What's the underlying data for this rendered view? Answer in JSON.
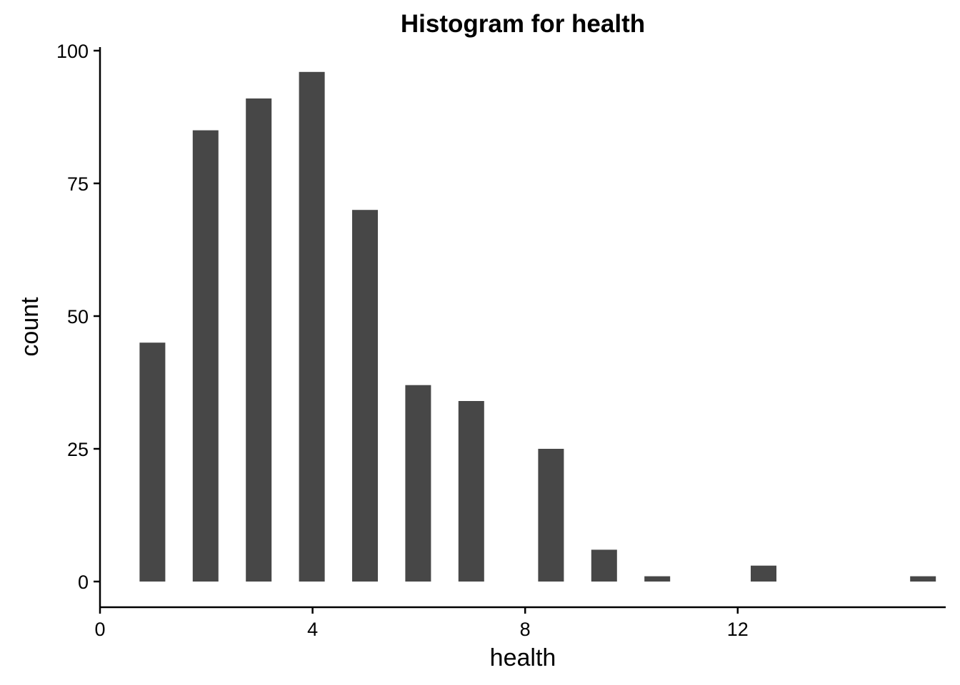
{
  "chart_data": {
    "type": "bar",
    "title": "Histogram for health",
    "xlabel": "health",
    "ylabel": "count",
    "bar_color": "#474747",
    "x": [
      1,
      2,
      3,
      4,
      5,
      6,
      7,
      8.5,
      9.5,
      10.5,
      12.5,
      15.5
    ],
    "values": [
      45,
      85,
      91,
      96,
      70,
      37,
      34,
      25,
      6,
      1,
      3,
      1
    ],
    "bin_width": 0.5,
    "xlim": [
      0,
      16.5
    ],
    "ylim": [
      -4.5,
      100
    ],
    "xticks": [
      0,
      4,
      8,
      12
    ],
    "xtick_labels": [
      "0",
      "4",
      "8",
      "12"
    ],
    "yticks": [
      0,
      25,
      50,
      75,
      100
    ],
    "ytick_labels": [
      "0",
      "25",
      "50",
      "75",
      "100"
    ],
    "grid": false,
    "legend": "none"
  }
}
